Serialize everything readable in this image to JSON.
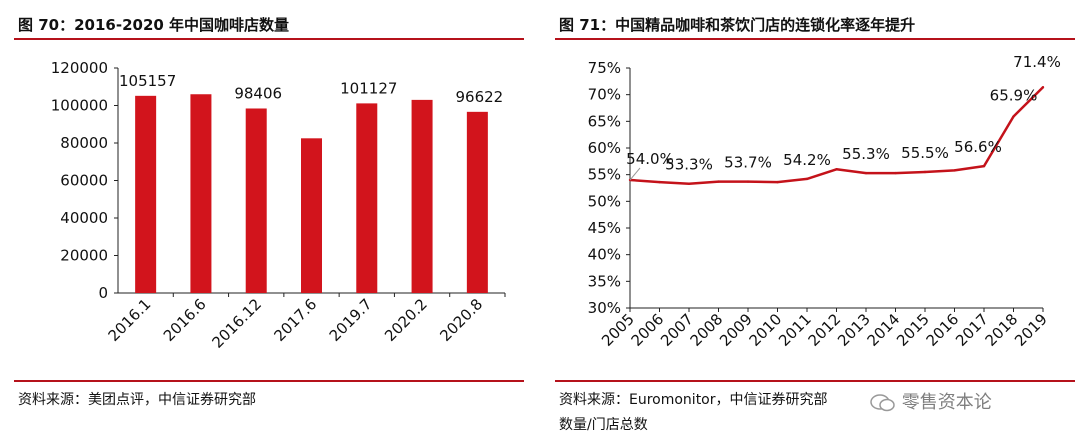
{
  "left_panel": {
    "title": "图 70：2016-2020 年中国咖啡店数量",
    "source": "资料来源：美团点评，中信证券研究部"
  },
  "right_panel": {
    "title": "图 71：中国精品咖啡和茶饮门店的连锁化率逐年提升",
    "source_line1": "资料来源：Euromonitor，中信证券研究部",
    "source_line2": "数量/门店总数",
    "watermark": "零售资本论"
  },
  "colors": {
    "bar": "#d2141c",
    "line": "#c4121a",
    "rule": "#b5121b"
  },
  "chart_data": [
    {
      "type": "bar",
      "title": "2016-2020 年中国咖啡店数量",
      "categories": [
        "2016.1",
        "2016.6",
        "2016.12",
        "2017.6",
        "2019.7",
        "2020.2",
        "2020.8"
      ],
      "values": [
        105157,
        106000,
        98406,
        82500,
        101127,
        103000,
        96622
      ],
      "data_labels": [
        "105157",
        "",
        "98406",
        "",
        "101127",
        "",
        "96622"
      ],
      "yticks": [
        "0",
        "20000",
        "40000",
        "60000",
        "80000",
        "100000",
        "120000"
      ],
      "ylim": [
        0,
        120000
      ],
      "xlabel": "",
      "ylabel": ""
    },
    {
      "type": "line",
      "title": "中国精品咖啡和茶饮门店的连锁化率逐年提升",
      "categories": [
        "2005",
        "2006",
        "2007",
        "2008",
        "2009",
        "2010",
        "2011",
        "2012",
        "2013",
        "2014",
        "2015",
        "2016",
        "2017",
        "2018",
        "2019"
      ],
      "values": [
        54.0,
        53.6,
        53.3,
        53.7,
        53.7,
        53.6,
        54.2,
        56.0,
        55.3,
        55.3,
        55.5,
        55.8,
        56.6,
        65.9,
        71.4
      ],
      "data_labels": [
        "54.0%",
        "",
        "53.3%",
        "",
        "53.7%",
        "",
        "54.2%",
        "",
        "55.3%",
        "",
        "55.5%",
        "",
        "56.6%",
        "65.9%",
        "71.4%"
      ],
      "yticks": [
        "30%",
        "35%",
        "40%",
        "45%",
        "50%",
        "55%",
        "60%",
        "65%",
        "70%",
        "75%"
      ],
      "ylim": [
        30,
        75
      ],
      "xlabel": "",
      "ylabel": ""
    }
  ]
}
